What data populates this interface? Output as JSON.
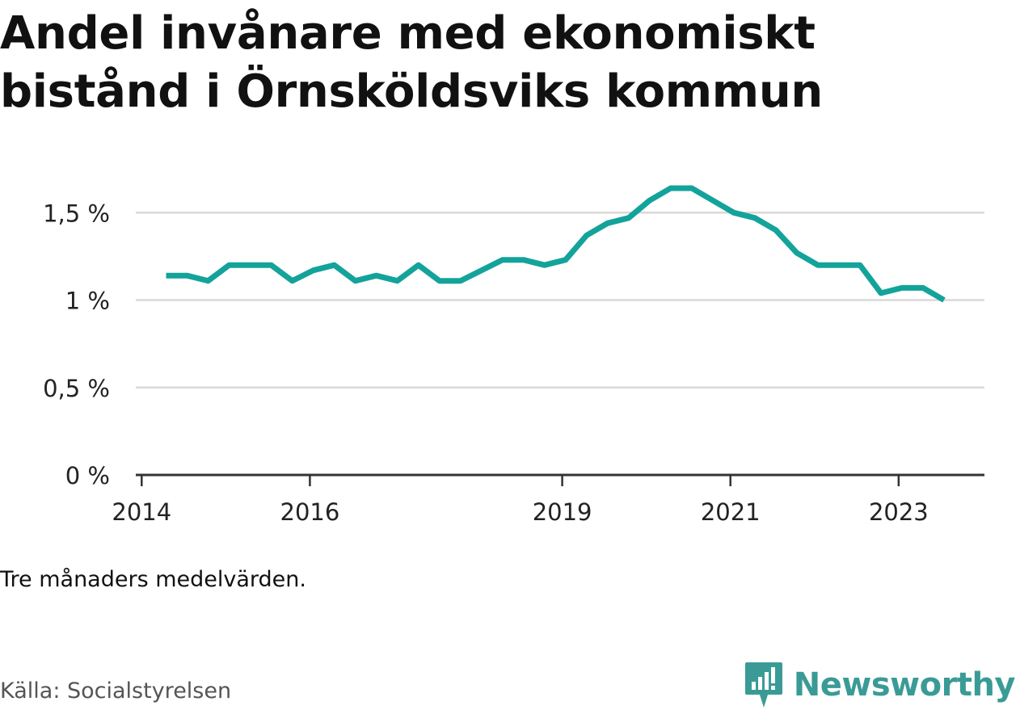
{
  "title_lines": [
    "Andel invånare med ekonomiskt",
    "bistånd i Örnsköldsviks kommun"
  ],
  "note": "Tre månaders medelvärden.",
  "source": "Källa: Socialstyrelsen",
  "brand": {
    "name": "Newsworthy",
    "icon": "newsworthy-logo-icon"
  },
  "colors": {
    "line": "#13a39a",
    "grid": "#d9d9d9",
    "axis": "#333333",
    "brand": "#3a9b96"
  },
  "chart_data": {
    "type": "line",
    "title": "Andel invånare med ekonomiskt bistånd i Örnsköldsviks kommun",
    "xlabel": "",
    "ylabel": "",
    "ylim": [
      0,
      1.7
    ],
    "xlim": [
      2013.93,
      2024.02
    ],
    "grid": true,
    "y_ticks": [
      {
        "value": 0,
        "label": "0 %"
      },
      {
        "value": 0.5,
        "label": "0,5 %"
      },
      {
        "value": 1.0,
        "label": "1 %"
      },
      {
        "value": 1.5,
        "label": "1,5 %"
      }
    ],
    "x_ticks": [
      {
        "value": 2014,
        "label": "2014"
      },
      {
        "value": 2016,
        "label": "2016"
      },
      {
        "value": 2019,
        "label": "2019"
      },
      {
        "value": 2021,
        "label": "2021"
      },
      {
        "value": 2023,
        "label": "2023"
      }
    ],
    "series": [
      {
        "x": [
          2014.29,
          2014.54,
          2014.79,
          2015.04,
          2015.29,
          2015.54,
          2015.79,
          2016.04,
          2016.29,
          2016.54,
          2016.79,
          2017.04,
          2017.29,
          2017.54,
          2017.79,
          2018.04,
          2018.29,
          2018.54,
          2018.79,
          2019.04,
          2019.29,
          2019.54,
          2019.79,
          2020.04,
          2020.29,
          2020.54,
          2020.79,
          2021.04,
          2021.29,
          2021.54,
          2021.79,
          2022.04,
          2022.29,
          2022.54,
          2022.79,
          2023.04,
          2023.29,
          2023.54
        ],
        "values": [
          1.14,
          1.14,
          1.11,
          1.2,
          1.2,
          1.2,
          1.11,
          1.17,
          1.2,
          1.11,
          1.14,
          1.11,
          1.2,
          1.11,
          1.11,
          1.17,
          1.23,
          1.23,
          1.2,
          1.23,
          1.37,
          1.44,
          1.47,
          1.57,
          1.64,
          1.64,
          1.57,
          1.5,
          1.47,
          1.4,
          1.27,
          1.2,
          1.2,
          1.2,
          1.04,
          1.07,
          1.07,
          1.0
        ]
      }
    ]
  }
}
